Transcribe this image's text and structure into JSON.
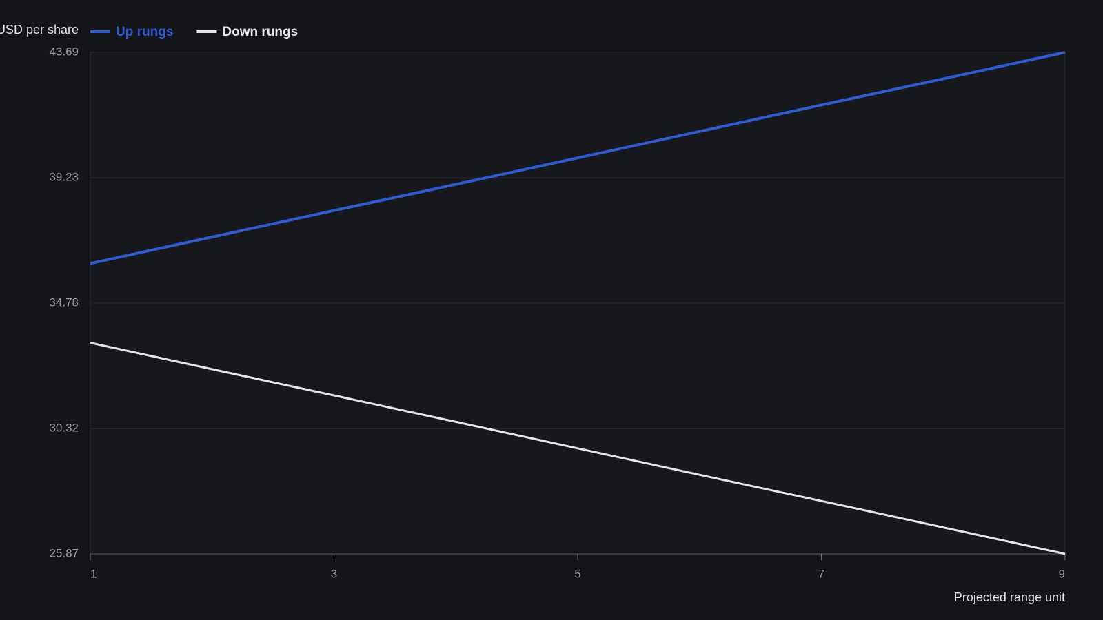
{
  "chart_data": {
    "type": "line",
    "y_label": "USD per share",
    "x_label": "Projected range unit",
    "x": [
      1,
      2,
      3,
      4,
      5,
      6,
      7,
      8,
      9
    ],
    "series": [
      {
        "name": "Up rungs",
        "color": "#2f5bd3",
        "values": [
          36.19,
          37.13,
          38.07,
          39.0,
          39.94,
          40.88,
          41.82,
          42.75,
          43.69
        ]
      },
      {
        "name": "Down rungs",
        "color": "#e6e6e6",
        "values": [
          33.37,
          32.43,
          31.5,
          30.56,
          29.62,
          28.68,
          27.75,
          26.81,
          25.87
        ]
      }
    ],
    "xlim": [
      1,
      9
    ],
    "xticks": [
      1,
      3,
      5,
      7,
      9
    ],
    "ylim": [
      25.87,
      43.69
    ],
    "yticks": [
      25.87,
      30.32,
      34.78,
      39.23,
      43.69
    ],
    "grid": true
  }
}
